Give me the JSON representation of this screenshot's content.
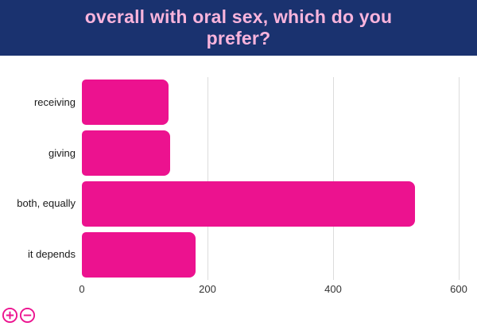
{
  "header": {
    "title": "overall with oral sex, which do you prefer?",
    "bg_color": "#1a326f",
    "title_color": "#f9b4dc"
  },
  "chart_data": {
    "type": "bar",
    "orientation": "horizontal",
    "title": "overall with oral sex, which do you prefer?",
    "categories": [
      "receiving",
      "giving",
      "both, equally",
      "it depends"
    ],
    "values": [
      138,
      141,
      530,
      181
    ],
    "xlabel": "",
    "ylabel": "",
    "xlim": [
      0,
      600
    ],
    "xticks": [
      "0",
      "200",
      "400",
      "600"
    ],
    "xtick_values": [
      0,
      200,
      400,
      600
    ],
    "bar_color": "#ec128f",
    "gridline_color": "#dcdcdc",
    "grid": true,
    "legend": false
  },
  "controls": {
    "zoom_in_label": "+",
    "zoom_out_label": "−",
    "accent_color": "#ec128f"
  }
}
